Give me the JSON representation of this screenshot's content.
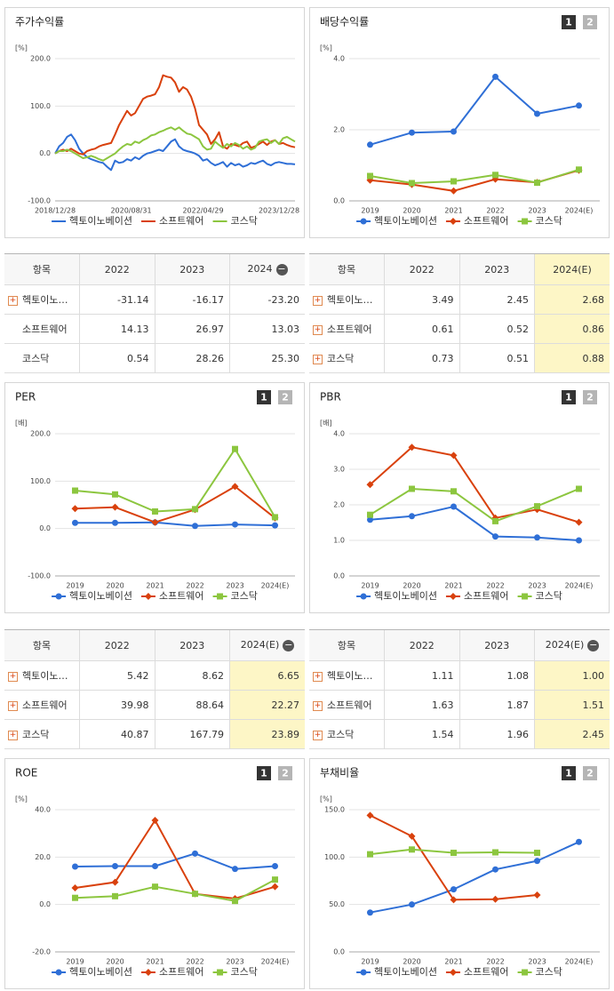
{
  "chart_data": [
    {
      "type": "line",
      "title": "주가수익률",
      "unit": "[%]",
      "grid": true,
      "categories": [
        "2018/12/28",
        null,
        null,
        null,
        null,
        null,
        null,
        null,
        null,
        null,
        null,
        null,
        null,
        null,
        null,
        null,
        null,
        null,
        null,
        "2020/08/31",
        null,
        null,
        null,
        null,
        null,
        null,
        null,
        null,
        null,
        null,
        null,
        null,
        null,
        null,
        null,
        null,
        null,
        "2022/04/29",
        null,
        null,
        null,
        null,
        null,
        null,
        null,
        null,
        null,
        null,
        null,
        null,
        null,
        null,
        null,
        null,
        null,
        null,
        "2023/12/28",
        null,
        null,
        null,
        null
      ],
      "ylim": [
        -100,
        200
      ],
      "yticks": [
        {
          "value": -100,
          "label": "-100.0"
        },
        {
          "value": 0,
          "label": "0.0"
        },
        {
          "value": 100,
          "label": "100.0"
        },
        {
          "value": 200,
          "label": "200.0"
        }
      ],
      "series": [
        {
          "name": "헥토이노베이션",
          "color": "#2f6fd6",
          "values": [
            0,
            15,
            22,
            35,
            40,
            28,
            10,
            0,
            -8,
            -12,
            -15,
            -18,
            -20,
            -28,
            -35,
            -15,
            -20,
            -18,
            -12,
            -15,
            -8,
            -12,
            -5,
            0,
            2,
            5,
            8,
            5,
            15,
            25,
            30,
            15,
            8,
            5,
            3,
            0,
            -5,
            -15,
            -12,
            -20,
            -25,
            -22,
            -18,
            -28,
            -20,
            -25,
            -22,
            -28,
            -25,
            -20,
            -22,
            -18,
            -15,
            -22,
            -25,
            -20,
            -18,
            -20,
            -22,
            -22,
            -23
          ]
        },
        {
          "name": "소프트웨어",
          "color": "#d9410d",
          "values": [
            0,
            5,
            8,
            5,
            10,
            5,
            0,
            -2,
            5,
            8,
            10,
            15,
            18,
            20,
            22,
            40,
            60,
            75,
            90,
            80,
            85,
            100,
            115,
            120,
            122,
            125,
            140,
            165,
            162,
            160,
            150,
            130,
            140,
            135,
            120,
            95,
            60,
            50,
            40,
            20,
            30,
            45,
            15,
            10,
            20,
            18,
            15,
            22,
            25,
            12,
            15,
            20,
            25,
            18,
            25,
            28,
            20,
            22,
            18,
            15,
            13
          ]
        },
        {
          "name": "코스닥",
          "color": "#8cc63f",
          "values": [
            0,
            5,
            5,
            8,
            5,
            0,
            -5,
            -10,
            -8,
            -5,
            -8,
            -12,
            -15,
            -10,
            -5,
            0,
            8,
            15,
            20,
            18,
            25,
            22,
            28,
            32,
            38,
            40,
            45,
            48,
            52,
            55,
            50,
            55,
            48,
            42,
            40,
            35,
            30,
            15,
            8,
            10,
            25,
            18,
            12,
            20,
            15,
            22,
            18,
            10,
            15,
            8,
            12,
            25,
            28,
            30,
            22,
            28,
            20,
            32,
            35,
            30,
            25
          ]
        }
      ]
    },
    {
      "type": "line",
      "title": "배당수익률",
      "tabs": [
        "1",
        "2"
      ],
      "unit": "[%]",
      "grid": true,
      "categories": [
        "2019",
        "2020",
        "2021",
        "2022",
        "2023",
        "2024(E)"
      ],
      "ylim": [
        0,
        4
      ],
      "yticks": [
        {
          "value": 0,
          "label": "0.0"
        },
        {
          "value": 2,
          "label": "2.0"
        },
        {
          "value": 4,
          "label": "4.0"
        }
      ],
      "series": [
        {
          "name": "헥토이노베이션",
          "color": "#2f6fd6",
          "marker": "circle",
          "values": [
            1.58,
            1.92,
            1.95,
            3.49,
            2.45,
            2.68
          ]
        },
        {
          "name": "소프트웨어",
          "color": "#d9410d",
          "marker": "diamond",
          "values": [
            0.58,
            0.46,
            0.28,
            0.61,
            0.52,
            0.86
          ]
        },
        {
          "name": "코스닥",
          "color": "#8cc63f",
          "marker": "square",
          "values": [
            0.7,
            0.5,
            0.55,
            0.73,
            0.51,
            0.88
          ]
        }
      ]
    },
    {
      "type": "line",
      "title": "PER",
      "tabs": [
        "1",
        "2"
      ],
      "unit": "[배]",
      "grid": true,
      "categories": [
        "2019",
        "2020",
        "2021",
        "2022",
        "2023",
        "2024(E)"
      ],
      "ylim": [
        -100,
        200
      ],
      "yticks": [
        {
          "value": -100,
          "label": "-100.0"
        },
        {
          "value": 0,
          "label": "0.0"
        },
        {
          "value": 100,
          "label": "100.0"
        },
        {
          "value": 200,
          "label": "200.0"
        }
      ],
      "series": [
        {
          "name": "헥토이노베이션",
          "color": "#2f6fd6",
          "marker": "circle",
          "values": [
            12,
            12,
            13,
            5.42,
            8.62,
            6.65
          ]
        },
        {
          "name": "소프트웨어",
          "color": "#d9410d",
          "marker": "diamond",
          "values": [
            42,
            45,
            13,
            39.98,
            88.64,
            22.27
          ]
        },
        {
          "name": "코스닥",
          "color": "#8cc63f",
          "marker": "square",
          "values": [
            80,
            72,
            36,
            40.87,
            167.79,
            23.89
          ]
        }
      ]
    },
    {
      "type": "line",
      "title": "PBR",
      "tabs": [
        "1",
        "2"
      ],
      "unit": "[배]",
      "grid": true,
      "categories": [
        "2019",
        "2020",
        "2021",
        "2022",
        "2023",
        "2024(E)"
      ],
      "ylim": [
        0,
        4
      ],
      "yticks": [
        {
          "value": 0,
          "label": "0.0"
        },
        {
          "value": 1,
          "label": "1.0"
        },
        {
          "value": 2,
          "label": "2.0"
        },
        {
          "value": 3,
          "label": "3.0"
        },
        {
          "value": 4,
          "label": "4.0"
        }
      ],
      "series": [
        {
          "name": "헥토이노베이션",
          "color": "#2f6fd6",
          "marker": "circle",
          "values": [
            1.58,
            1.68,
            1.95,
            1.11,
            1.08,
            1.0
          ]
        },
        {
          "name": "소프트웨어",
          "color": "#d9410d",
          "marker": "diamond",
          "values": [
            2.57,
            3.62,
            3.39,
            1.63,
            1.87,
            1.51
          ]
        },
        {
          "name": "코스닥",
          "color": "#8cc63f",
          "marker": "square",
          "values": [
            1.72,
            2.45,
            2.38,
            1.54,
            1.96,
            2.45
          ]
        }
      ]
    },
    {
      "type": "line",
      "title": "ROE",
      "tabs": [
        "1",
        "2"
      ],
      "unit": "[%]",
      "grid": true,
      "categories": [
        "2019",
        "2020",
        "2021",
        "2022",
        "2023",
        "2024(E)"
      ],
      "ylim": [
        -20,
        40
      ],
      "yticks": [
        {
          "value": -20,
          "label": "-20.0"
        },
        {
          "value": 0,
          "label": "0.0"
        },
        {
          "value": 20,
          "label": "20.0"
        },
        {
          "value": 40,
          "label": "40.0"
        }
      ],
      "series": [
        {
          "name": "헥토이노베이션",
          "color": "#2f6fd6",
          "marker": "circle",
          "values": [
            16,
            16.2,
            16.2,
            21.5,
            15,
            16.2
          ]
        },
        {
          "name": "소프트웨어",
          "color": "#d9410d",
          "marker": "diamond",
          "values": [
            7,
            9.4,
            35.5,
            4.5,
            2.5,
            7.5
          ]
        },
        {
          "name": "코스닥",
          "color": "#8cc63f",
          "marker": "square",
          "values": [
            2.8,
            3.5,
            7.5,
            4.5,
            1.5,
            10.5
          ]
        }
      ]
    },
    {
      "type": "line",
      "title": "부채비율",
      "tabs": [
        "1",
        "2"
      ],
      "unit": "[%]",
      "grid": true,
      "categories": [
        "2019",
        "2020",
        "2021",
        "2022",
        "2023",
        "2024(E)"
      ],
      "ylim": [
        0,
        150
      ],
      "yticks": [
        {
          "value": 0,
          "label": "0.0"
        },
        {
          "value": 50,
          "label": "50.0"
        },
        {
          "value": 100,
          "label": "100.0"
        },
        {
          "value": 150,
          "label": "150.0"
        }
      ],
      "series": [
        {
          "name": "헥토이노베이션",
          "color": "#2f6fd6",
          "marker": "circle",
          "values": [
            41.5,
            50,
            66,
            87,
            96,
            116
          ]
        },
        {
          "name": "소프트웨어",
          "color": "#d9410d",
          "marker": "diamond",
          "values": [
            144,
            122,
            55,
            55.5,
            60,
            null
          ]
        },
        {
          "name": "코스닥",
          "color": "#8cc63f",
          "marker": "square",
          "values": [
            103,
            108,
            104.5,
            105,
            104.5,
            null
          ]
        }
      ]
    }
  ],
  "tables": [
    {
      "header": [
        "항목",
        "2022",
        "2023",
        "2024"
      ],
      "rows": [
        [
          "헥토이노…",
          "-31.14",
          "-16.17",
          "-23.20"
        ],
        [
          "소프트웨어",
          "14.13",
          "26.97",
          "13.03"
        ],
        [
          "코스닥",
          "0.54",
          "28.26",
          "25.30"
        ]
      ]
    },
    {
      "header": [
        "항목",
        "2022",
        "2023",
        "2024(E)"
      ],
      "rows": [
        [
          "헥토이노…",
          "3.49",
          "2.45",
          "2.68"
        ],
        [
          "소프트웨어",
          "0.61",
          "0.52",
          "0.86"
        ],
        [
          "코스닥",
          "0.73",
          "0.51",
          "0.88"
        ]
      ]
    },
    {
      "header": [
        "항목",
        "2022",
        "2023",
        "2024(E)"
      ],
      "rows": [
        [
          "헥토이노…",
          "5.42",
          "8.62",
          "6.65"
        ],
        [
          "소프트웨어",
          "39.98",
          "88.64",
          "22.27"
        ],
        [
          "코스닥",
          "40.87",
          "167.79",
          "23.89"
        ]
      ]
    },
    {
      "header": [
        "항목",
        "2022",
        "2023",
        "2024(E)"
      ],
      "rows": [
        [
          "헥토이노…",
          "1.11",
          "1.08",
          "1.00"
        ],
        [
          "소프트웨어",
          "1.63",
          "1.87",
          "1.51"
        ],
        [
          "코스닥",
          "1.54",
          "1.96",
          "2.45"
        ]
      ]
    }
  ]
}
